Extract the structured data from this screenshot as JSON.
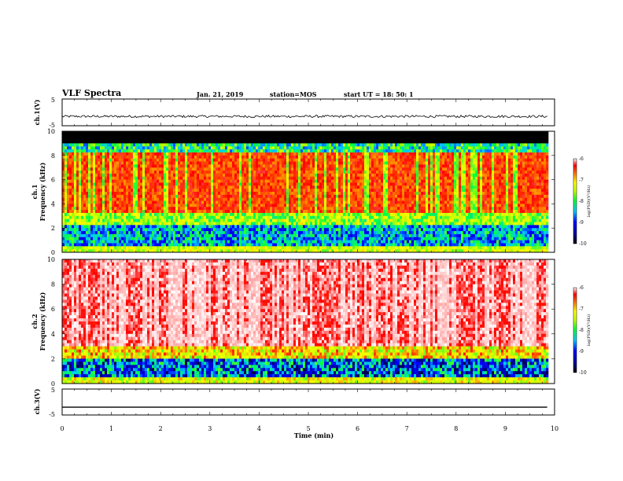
{
  "header": {
    "title": "VLF Spectra",
    "date": "Jan. 21, 2019",
    "station": "station=MOS",
    "start_ut": "start UT =  18: 50: 1"
  },
  "chart_data": [
    {
      "type": "line",
      "name": "ch1-waveform",
      "ylabel": "ch.1(V)",
      "ylim": [
        -5,
        5
      ],
      "yticks": [
        "5",
        "-5"
      ],
      "xlim": [
        0,
        10
      ],
      "baseline_value": -1.5
    },
    {
      "type": "heatmap",
      "name": "ch1-spectrogram",
      "ylabel": "ch.1",
      "ylabel2": "Frequency (kHz)",
      "ylim": [
        0,
        10
      ],
      "yticks": [
        "0",
        "2",
        "4",
        "6",
        "8",
        "10"
      ],
      "xlim": [
        0,
        10
      ],
      "data_end_min": 9.85,
      "colorbar": {
        "label": "log(PSD)(V²/Hz)",
        "range": [
          -10,
          -6
        ],
        "ticks": [
          "-6",
          "-7",
          "-8",
          "-9",
          "-10"
        ]
      }
    },
    {
      "type": "heatmap",
      "name": "ch2-spectrogram",
      "ylabel": "ch.2",
      "ylabel2": "Frequency (kHz)",
      "ylim": [
        0,
        10
      ],
      "yticks": [
        "0",
        "2",
        "4",
        "6",
        "8",
        "10"
      ],
      "xlim": [
        0,
        10
      ],
      "data_end_min": 9.85,
      "colorbar": {
        "label": "log(PSD)(V²/Hz)",
        "range": [
          -10,
          -6
        ],
        "ticks": [
          "-6",
          "-7",
          "-8",
          "-9",
          "-10"
        ]
      }
    },
    {
      "type": "line",
      "name": "ch3-waveform",
      "ylabel": "ch.3(V)",
      "ylim": [
        -5,
        5
      ],
      "yticks": [
        "5",
        "-5"
      ],
      "xlim": [
        0,
        10
      ],
      "baseline_value": -2,
      "xlabel": "Time (min)",
      "xticks": [
        "0",
        "1",
        "2",
        "3",
        "4",
        "5",
        "6",
        "7",
        "8",
        "9",
        "10"
      ]
    }
  ]
}
